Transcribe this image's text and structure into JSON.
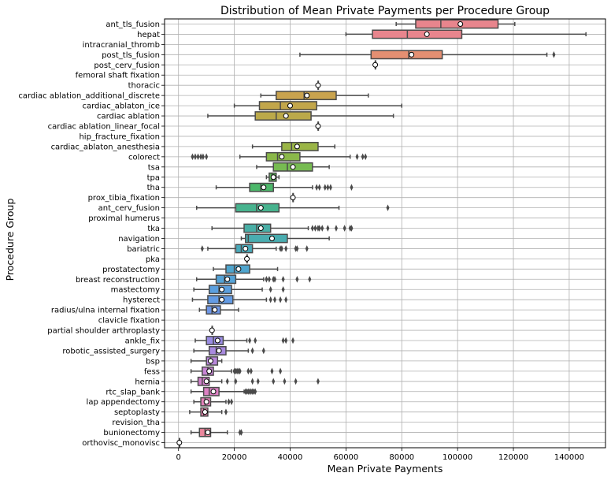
{
  "chart_data": {
    "type": "box",
    "orientation": "horizontal",
    "title": "Distribution of Mean Private Payments per Procedure Group",
    "xlabel": "Mean Private Payments",
    "ylabel": "Procedure Group",
    "xlim": [
      -5000,
      153000
    ],
    "xticks": [
      0,
      20000,
      40000,
      60000,
      80000,
      100000,
      120000,
      140000
    ],
    "xtick_labels": [
      "0",
      "20000",
      "40000",
      "60000",
      "80000",
      "100000",
      "120000",
      "140000"
    ],
    "grid": true,
    "mean_marker": "white circle",
    "categories": [
      {
        "name": "ant_tls_fusion",
        "color": "#e8858d",
        "q1": 85000,
        "median": 94000,
        "q3": 114500,
        "whisker_low": 78000,
        "whisker_high": 120500,
        "mean": 101000,
        "outliers": []
      },
      {
        "name": "hepat",
        "color": "#e8858d",
        "q1": 69500,
        "median": 82000,
        "q3": 101500,
        "whisker_low": 60000,
        "whisker_high": 146000,
        "mean": 89000,
        "outliers": []
      },
      {
        "name": "intracranial_thromb",
        "color": "#e8858d",
        "outliers": []
      },
      {
        "name": "post_tls_fusion",
        "color": "#e48f72",
        "q1": 69000,
        "median": 82500,
        "q3": 94500,
        "whisker_low": 43500,
        "whisker_high": 132000,
        "mean": 83500,
        "outliers": [
          134500
        ]
      },
      {
        "name": "post_cerv_fusion",
        "color": "#e3926c",
        "q1": 70500,
        "median": 70500,
        "q3": 70500,
        "whisker_low": 70500,
        "whisker_high": 70500,
        "mean": 70500,
        "outliers": []
      },
      {
        "name": "femoral shaft fixation",
        "color": "#dc9a5e",
        "outliers": []
      },
      {
        "name": "thoracic",
        "color": "#d59d58",
        "q1": 50000,
        "median": 50000,
        "q3": 50000,
        "whisker_low": 50000,
        "whisker_high": 50000,
        "mean": 50000,
        "outliers": []
      },
      {
        "name": "cardiac ablation_additional_discrete",
        "color": "#c9a34e",
        "q1": 35000,
        "median": 45000,
        "q3": 56500,
        "whisker_low": 29500,
        "whisker_high": 68000,
        "mean": 46000,
        "outliers": []
      },
      {
        "name": "cardiac_ablaton_ice",
        "color": "#c2a64a",
        "q1": 29000,
        "median": 36500,
        "q3": 49500,
        "whisker_low": 20000,
        "whisker_high": 80000,
        "mean": 40000,
        "outliers": []
      },
      {
        "name": "cardiac ablation",
        "color": "#bba94a",
        "q1": 27500,
        "median": 35000,
        "q3": 47500,
        "whisker_low": 10500,
        "whisker_high": 77000,
        "mean": 38500,
        "outliers": []
      },
      {
        "name": "cardiac ablation_linear_focal",
        "color": "#b0ae48",
        "q1": 50000,
        "median": 50000,
        "q3": 50000,
        "whisker_low": 50000,
        "whisker_high": 50000,
        "mean": 50000,
        "outliers": []
      },
      {
        "name": "hip_fracture_fixation",
        "color": "#a5b246",
        "outliers": []
      },
      {
        "name": "cardiac_ablaton_anesthesia",
        "color": "#9ab546",
        "q1": 37000,
        "median": 40500,
        "q3": 50000,
        "whisker_low": 26500,
        "whisker_high": 56000,
        "mean": 42500,
        "outliers": []
      },
      {
        "name": "colorect",
        "color": "#8ab849",
        "q1": 31500,
        "median": 35500,
        "q3": 43500,
        "whisker_low": 22000,
        "whisker_high": 61500,
        "mean": 37000,
        "outliers": [
          5000,
          6000,
          7000,
          8000,
          8800,
          10000,
          64000,
          66000,
          67000
        ]
      },
      {
        "name": "tsa",
        "color": "#77bb52",
        "q1": 34000,
        "median": 39000,
        "q3": 48000,
        "whisker_low": 28000,
        "whisker_high": 54000,
        "mean": 41000,
        "outliers": []
      },
      {
        "name": "tpa",
        "color": "#5eba5c",
        "q1": 32500,
        "median": 33500,
        "q3": 35000,
        "whisker_low": 31500,
        "whisker_high": 36000,
        "mean": 34000,
        "outliers": []
      },
      {
        "name": "tha",
        "color": "#4cb86a",
        "q1": 25500,
        "median": 29500,
        "q3": 34000,
        "whisker_low": 13500,
        "whisker_high": 48000,
        "mean": 30500,
        "outliers": [
          49500,
          50500,
          52500,
          53500,
          54500,
          62000
        ]
      },
      {
        "name": "prox_tibia_fixation",
        "color": "#48b57c",
        "q1": 41000,
        "median": 41000,
        "q3": 41000,
        "whisker_low": 41000,
        "whisker_high": 41000,
        "mean": 41000,
        "outliers": []
      },
      {
        "name": "ant_cerv_fusion",
        "color": "#47b38e",
        "q1": 20500,
        "median": 28000,
        "q3": 36000,
        "whisker_low": 6500,
        "whisker_high": 57500,
        "mean": 29500,
        "outliers": [
          75000
        ]
      },
      {
        "name": "proximal humerus",
        "color": "#48b19a",
        "outliers": []
      },
      {
        "name": "tka",
        "color": "#49afa6",
        "q1": 23500,
        "median": 28000,
        "q3": 33000,
        "whisker_low": 12000,
        "whisker_high": 46500,
        "mean": 29500,
        "outliers": [
          48000,
          49000,
          50000,
          50500,
          51500,
          53500,
          56500,
          59500,
          61500,
          62000
        ]
      },
      {
        "name": "navigation",
        "color": "#4aadb0",
        "q1": 24000,
        "median": 25000,
        "q3": 39000,
        "whisker_low": 22500,
        "whisker_high": 54000,
        "mean": 33500,
        "outliers": []
      },
      {
        "name": "bariatric",
        "color": "#4aaaba",
        "q1": 20500,
        "median": 22500,
        "q3": 26500,
        "whisker_low": 10500,
        "whisker_high": 35000,
        "mean": 24000,
        "outliers": [
          8500,
          36500,
          37000,
          38500,
          42000,
          42500,
          46000
        ]
      },
      {
        "name": "pka",
        "color": "#4ca8c3",
        "q1": 24500,
        "median": 24500,
        "q3": 24500,
        "whisker_low": 24500,
        "whisker_high": 24500,
        "mean": 24500,
        "outliers": []
      },
      {
        "name": "prostatectomy",
        "color": "#4fa5ce",
        "q1": 17000,
        "median": 20000,
        "q3": 25500,
        "whisker_low": 12500,
        "whisker_high": 35500,
        "mean": 21500,
        "outliers": []
      },
      {
        "name": "breast reconstruction",
        "color": "#54a2d6",
        "q1": 13500,
        "median": 16500,
        "q3": 20500,
        "whisker_low": 6500,
        "whisker_high": 30500,
        "mean": 17500,
        "outliers": [
          31500,
          32500,
          34000,
          34500,
          37500,
          42500,
          47000
        ]
      },
      {
        "name": "mastectomy",
        "color": "#5b9fde",
        "q1": 11000,
        "median": 14500,
        "q3": 19000,
        "whisker_low": 5500,
        "whisker_high": 30000,
        "mean": 15500,
        "outliers": [
          33000,
          37500
        ]
      },
      {
        "name": "hysterect",
        "color": "#639be4",
        "q1": 10500,
        "median": 14500,
        "q3": 19500,
        "whisker_low": 5000,
        "whisker_high": 31500,
        "mean": 15500,
        "outliers": [
          33000,
          34500,
          36500,
          38500
        ]
      },
      {
        "name": "radius/ulna internal fixation",
        "color": "#6e97e7",
        "q1": 10000,
        "median": 12000,
        "q3": 15000,
        "whisker_low": 7500,
        "whisker_high": 21500,
        "mean": 13000,
        "outliers": []
      },
      {
        "name": "clavicle fixation",
        "color": "#7b93e8",
        "outliers": []
      },
      {
        "name": "partial shoulder arthroplasty",
        "color": "#8a8fe7",
        "q1": 12000,
        "median": 12000,
        "q3": 12000,
        "whisker_low": 12000,
        "whisker_high": 12000,
        "mean": 12000,
        "outliers": []
      },
      {
        "name": "ankle_fix",
        "color": "#9a8ce3",
        "q1": 10000,
        "median": 12500,
        "q3": 16000,
        "whisker_low": 6000,
        "whisker_high": 24500,
        "mean": 14000,
        "outliers": [
          25500,
          27500,
          37500,
          38500,
          41000
        ]
      },
      {
        "name": "robotic_assisted_surgery",
        "color": "#a98adf",
        "q1": 11000,
        "median": 13500,
        "q3": 17000,
        "whisker_low": 5500,
        "whisker_high": 25000,
        "mean": 14500,
        "outliers": [
          26500,
          30500
        ]
      },
      {
        "name": "bsp",
        "color": "#b887da",
        "q1": 10000,
        "median": 11500,
        "q3": 14000,
        "whisker_low": 4500,
        "whisker_high": 15500,
        "mean": 11500,
        "outliers": []
      },
      {
        "name": "fess",
        "color": "#c684d3",
        "q1": 8500,
        "median": 10500,
        "q3": 12500,
        "whisker_low": 4500,
        "whisker_high": 19000,
        "mean": 11000,
        "outliers": [
          20000,
          20500,
          21000,
          21500,
          22000,
          25000,
          26000,
          33500,
          36500
        ]
      },
      {
        "name": "hernia",
        "color": "#d281cc",
        "q1": 7000,
        "median": 8500,
        "q3": 11000,
        "whisker_low": 4500,
        "whisker_high": 15500,
        "mean": 10000,
        "outliers": [
          17500,
          20500,
          26500,
          28500,
          34000,
          38000,
          42000,
          50000
        ]
      },
      {
        "name": "rtc_slap_bank",
        "color": "#dc80c3",
        "q1": 9000,
        "median": 11000,
        "q3": 14500,
        "whisker_low": 4500,
        "whisker_high": 23500,
        "mean": 12500,
        "outliers": [
          24000,
          24500,
          25000,
          25500,
          26000,
          26500,
          27000,
          27500
        ]
      },
      {
        "name": "lap appendectomy",
        "color": "#e481b9",
        "q1": 8000,
        "median": 9500,
        "q3": 11500,
        "whisker_low": 5500,
        "whisker_high": 17000,
        "mean": 10000,
        "outliers": [
          18000,
          19000
        ]
      },
      {
        "name": "septoplasty",
        "color": "#e983ae",
        "q1": 8000,
        "median": 9000,
        "q3": 10500,
        "whisker_low": 4000,
        "whisker_high": 15500,
        "mean": 9500,
        "outliers": [
          17000
        ]
      },
      {
        "name": "revision_tha",
        "color": "#eb85a4",
        "outliers": []
      },
      {
        "name": "bunionectomy",
        "color": "#ec879d",
        "q1": 7500,
        "median": 9500,
        "q3": 11500,
        "whisker_low": 4500,
        "whisker_high": 17500,
        "mean": 10500,
        "outliers": [
          22000,
          22500
        ]
      },
      {
        "name": "orthovisc_monovisc",
        "color": "#ec8996",
        "q1": 300,
        "median": 300,
        "q3": 300,
        "whisker_low": 300,
        "whisker_high": 300,
        "mean": 300,
        "outliers": []
      }
    ]
  }
}
